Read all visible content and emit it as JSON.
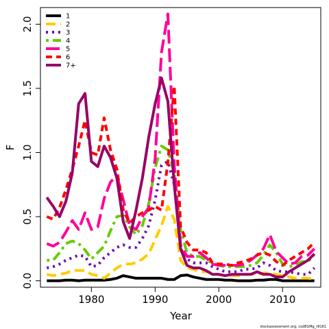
{
  "chart_data": {
    "type": "line",
    "title": "",
    "xlabel": "Year",
    "ylabel": "F",
    "xlim": [
      1972,
      2016
    ],
    "ylim": [
      -0.05,
      2.13
    ],
    "x_ticks": [
      1980,
      1990,
      2000,
      2010
    ],
    "y_ticks": [
      0.0,
      0.5,
      1.0,
      1.5,
      2.0
    ],
    "x_tick_labels": [
      "1980",
      "1990",
      "2000",
      "2010"
    ],
    "y_tick_labels": [
      "0.0",
      "0.5",
      "1.0",
      "1.5",
      "2.0"
    ],
    "legend_position": "top-left",
    "grid": false,
    "x": [
      1973,
      1974,
      1975,
      1976,
      1977,
      1978,
      1979,
      1980,
      1981,
      1982,
      1983,
      1984,
      1985,
      1986,
      1987,
      1988,
      1989,
      1990,
      1991,
      1992,
      1993,
      1994,
      1995,
      1996,
      1997,
      1998,
      1999,
      2000,
      2001,
      2002,
      2003,
      2004,
      2005,
      2006,
      2007,
      2008,
      2009,
      2010,
      2011,
      2012,
      2013,
      2014,
      2015
    ],
    "series": [
      {
        "name": "1",
        "color": "#000000",
        "dash": "solid",
        "values": [
          0.0,
          0.0,
          0.0,
          0.005,
          0.005,
          0.0,
          0.005,
          0.005,
          0.005,
          0.005,
          0.01,
          0.02,
          0.04,
          0.03,
          0.02,
          0.02,
          0.02,
          0.02,
          0.02,
          0.01,
          0.01,
          0.04,
          0.045,
          0.03,
          0.02,
          0.01,
          0.01,
          0.01,
          0.005,
          0.005,
          0.0,
          0.0,
          0.0,
          0.005,
          0.005,
          0.01,
          0.01,
          0.0,
          0.0,
          0.0,
          0.0,
          0.0,
          0.0
        ]
      },
      {
        "name": "2",
        "color": "#ffcc00",
        "dash": "long",
        "values": [
          0.05,
          0.04,
          0.05,
          0.06,
          0.08,
          0.08,
          0.08,
          0.05,
          0.04,
          0.02,
          0.06,
          0.1,
          0.13,
          0.13,
          0.14,
          0.17,
          0.21,
          0.32,
          0.43,
          0.58,
          0.48,
          0.16,
          0.1,
          0.09,
          0.07,
          0.07,
          0.06,
          0.05,
          0.04,
          0.04,
          0.04,
          0.05,
          0.05,
          0.05,
          0.06,
          0.06,
          0.05,
          0.04,
          0.03,
          0.02,
          0.02,
          0.02,
          0.01
        ]
      },
      {
        "name": "3",
        "color": "#6a0dad",
        "dash": "dot",
        "values": [
          0.1,
          0.11,
          0.13,
          0.16,
          0.18,
          0.2,
          0.19,
          0.11,
          0.12,
          0.18,
          0.22,
          0.26,
          0.28,
          0.26,
          0.26,
          0.33,
          0.43,
          0.63,
          0.9,
          0.93,
          0.75,
          0.25,
          0.17,
          0.14,
          0.14,
          0.14,
          0.11,
          0.09,
          0.07,
          0.07,
          0.07,
          0.09,
          0.09,
          0.1,
          0.14,
          0.12,
          0.08,
          0.07,
          0.07,
          0.06,
          0.05,
          0.05,
          0.1
        ]
      },
      {
        "name": "4",
        "color": "#66cc00",
        "dash": "dashdot",
        "values": [
          0.16,
          0.16,
          0.22,
          0.29,
          0.31,
          0.29,
          0.24,
          0.17,
          0.22,
          0.27,
          0.39,
          0.5,
          0.51,
          0.42,
          0.36,
          0.43,
          0.6,
          0.88,
          1.05,
          1.02,
          0.84,
          0.4,
          0.22,
          0.19,
          0.19,
          0.16,
          0.14,
          0.12,
          0.11,
          0.11,
          0.11,
          0.11,
          0.12,
          0.14,
          0.2,
          0.28,
          0.22,
          0.13,
          0.11,
          0.12,
          0.15,
          0.15,
          0.2
        ]
      },
      {
        "name": "5",
        "color": "#ff0099",
        "dash": "longdash",
        "values": [
          0.29,
          0.27,
          0.3,
          0.38,
          0.47,
          0.4,
          0.53,
          0.4,
          0.42,
          0.64,
          0.77,
          0.82,
          0.63,
          0.43,
          0.4,
          0.5,
          0.57,
          0.95,
          1.78,
          2.08,
          0.9,
          0.28,
          0.19,
          0.19,
          0.22,
          0.18,
          0.13,
          0.12,
          0.12,
          0.12,
          0.12,
          0.13,
          0.16,
          0.2,
          0.25,
          0.36,
          0.23,
          0.18,
          0.13,
          0.14,
          0.19,
          0.2,
          0.25
        ]
      },
      {
        "name": "6",
        "color": "#ff0000",
        "dash": "dash",
        "values": [
          0.5,
          0.48,
          0.57,
          0.71,
          0.87,
          1.05,
          1.25,
          1.0,
          0.98,
          1.27,
          1.02,
          0.87,
          0.55,
          0.45,
          0.5,
          0.53,
          0.55,
          0.58,
          0.55,
          0.92,
          1.52,
          0.42,
          0.3,
          0.24,
          0.24,
          0.22,
          0.14,
          0.13,
          0.13,
          0.12,
          0.14,
          0.15,
          0.17,
          0.2,
          0.22,
          0.2,
          0.15,
          0.12,
          0.16,
          0.19,
          0.22,
          0.25,
          0.3
        ]
      },
      {
        "name": "7+",
        "color": "#990066",
        "dash": "solid",
        "values": [
          0.65,
          0.58,
          0.5,
          0.62,
          0.84,
          1.38,
          1.46,
          0.93,
          0.89,
          1.05,
          0.96,
          0.8,
          0.46,
          0.33,
          0.55,
          0.8,
          1.12,
          1.38,
          1.58,
          1.4,
          0.75,
          0.25,
          0.12,
          0.1,
          0.1,
          0.08,
          0.05,
          0.05,
          0.04,
          0.05,
          0.05,
          0.05,
          0.05,
          0.07,
          0.05,
          0.05,
          0.03,
          0.03,
          0.07,
          0.1,
          0.13,
          0.16,
          0.21
        ]
      }
    ]
  },
  "footnote": "stockassessment.org, codEGMg_r8161"
}
